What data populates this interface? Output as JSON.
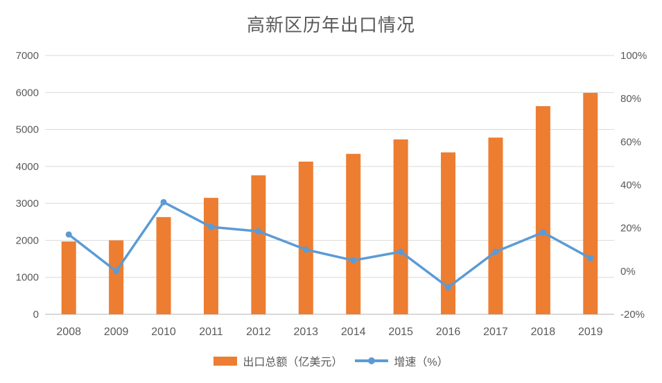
{
  "colors": {
    "bar": "#ED7D31",
    "line": "#5B9BD5",
    "gridline": "#D9D9D9",
    "axisline": "#D9D9D9",
    "text": "#595959"
  },
  "chart_data": {
    "type": "bar",
    "title": "高新区历年出口情况",
    "categories": [
      "2008",
      "2009",
      "2010",
      "2011",
      "2012",
      "2013",
      "2014",
      "2015",
      "2016",
      "2017",
      "2018",
      "2019"
    ],
    "series": [
      {
        "name": "出口总额（亿美元）",
        "type": "bar",
        "axis": "left",
        "color": "#ED7D31",
        "values": [
          1970,
          2000,
          2630,
          3150,
          3760,
          4130,
          4340,
          4730,
          4380,
          4780,
          5630,
          5990
        ]
      },
      {
        "name": "增速（%）",
        "type": "line",
        "axis": "right",
        "color": "#5B9BD5",
        "values": [
          17,
          0,
          32,
          20.5,
          18.5,
          10,
          5,
          9,
          -7.5,
          9,
          18,
          6
        ]
      }
    ],
    "left_axis": {
      "min": 0,
      "max": 7000,
      "step": 1000,
      "ticks": [
        "0",
        "1000",
        "2000",
        "3000",
        "4000",
        "5000",
        "6000",
        "7000"
      ]
    },
    "right_axis": {
      "min": -20,
      "max": 100,
      "step": 20,
      "ticks": [
        "-20%",
        "0%",
        "20%",
        "40%",
        "60%",
        "80%",
        "100%"
      ]
    },
    "grid": true,
    "legend_position": "bottom"
  }
}
